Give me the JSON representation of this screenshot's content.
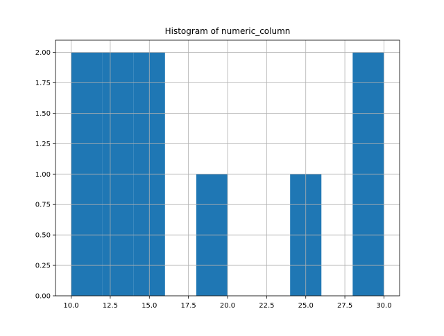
{
  "chart_data": {
    "type": "bar",
    "title": "Histogram of numeric_column",
    "xlabel": "",
    "ylabel": "",
    "bins": [
      {
        "x0": 10,
        "x1": 12,
        "count": 2
      },
      {
        "x0": 12,
        "x1": 14,
        "count": 2
      },
      {
        "x0": 14,
        "x1": 16,
        "count": 2
      },
      {
        "x0": 16,
        "x1": 18,
        "count": 0
      },
      {
        "x0": 18,
        "x1": 20,
        "count": 1
      },
      {
        "x0": 20,
        "x1": 22,
        "count": 0
      },
      {
        "x0": 22,
        "x1": 24,
        "count": 0
      },
      {
        "x0": 24,
        "x1": 26,
        "count": 1
      },
      {
        "x0": 26,
        "x1": 28,
        "count": 0
      },
      {
        "x0": 28,
        "x1": 30,
        "count": 2
      }
    ],
    "xlim": [
      9,
      31
    ],
    "ylim": [
      0,
      2.1
    ],
    "xticks": [
      10.0,
      12.5,
      15.0,
      17.5,
      20.0,
      22.5,
      25.0,
      27.5,
      30.0
    ],
    "xtick_labels": [
      "10.0",
      "12.5",
      "15.0",
      "17.5",
      "20.0",
      "22.5",
      "25.0",
      "27.5",
      "30.0"
    ],
    "yticks": [
      0.0,
      0.25,
      0.5,
      0.75,
      1.0,
      1.25,
      1.5,
      1.75,
      2.0
    ],
    "ytick_labels": [
      "0.00",
      "0.25",
      "0.50",
      "0.75",
      "1.00",
      "1.25",
      "1.50",
      "1.75",
      "2.00"
    ],
    "grid": true,
    "legend": "none",
    "colors": {
      "bar": "#1f77b4",
      "grid": "#b0b0b0",
      "axes": "#000000"
    }
  }
}
